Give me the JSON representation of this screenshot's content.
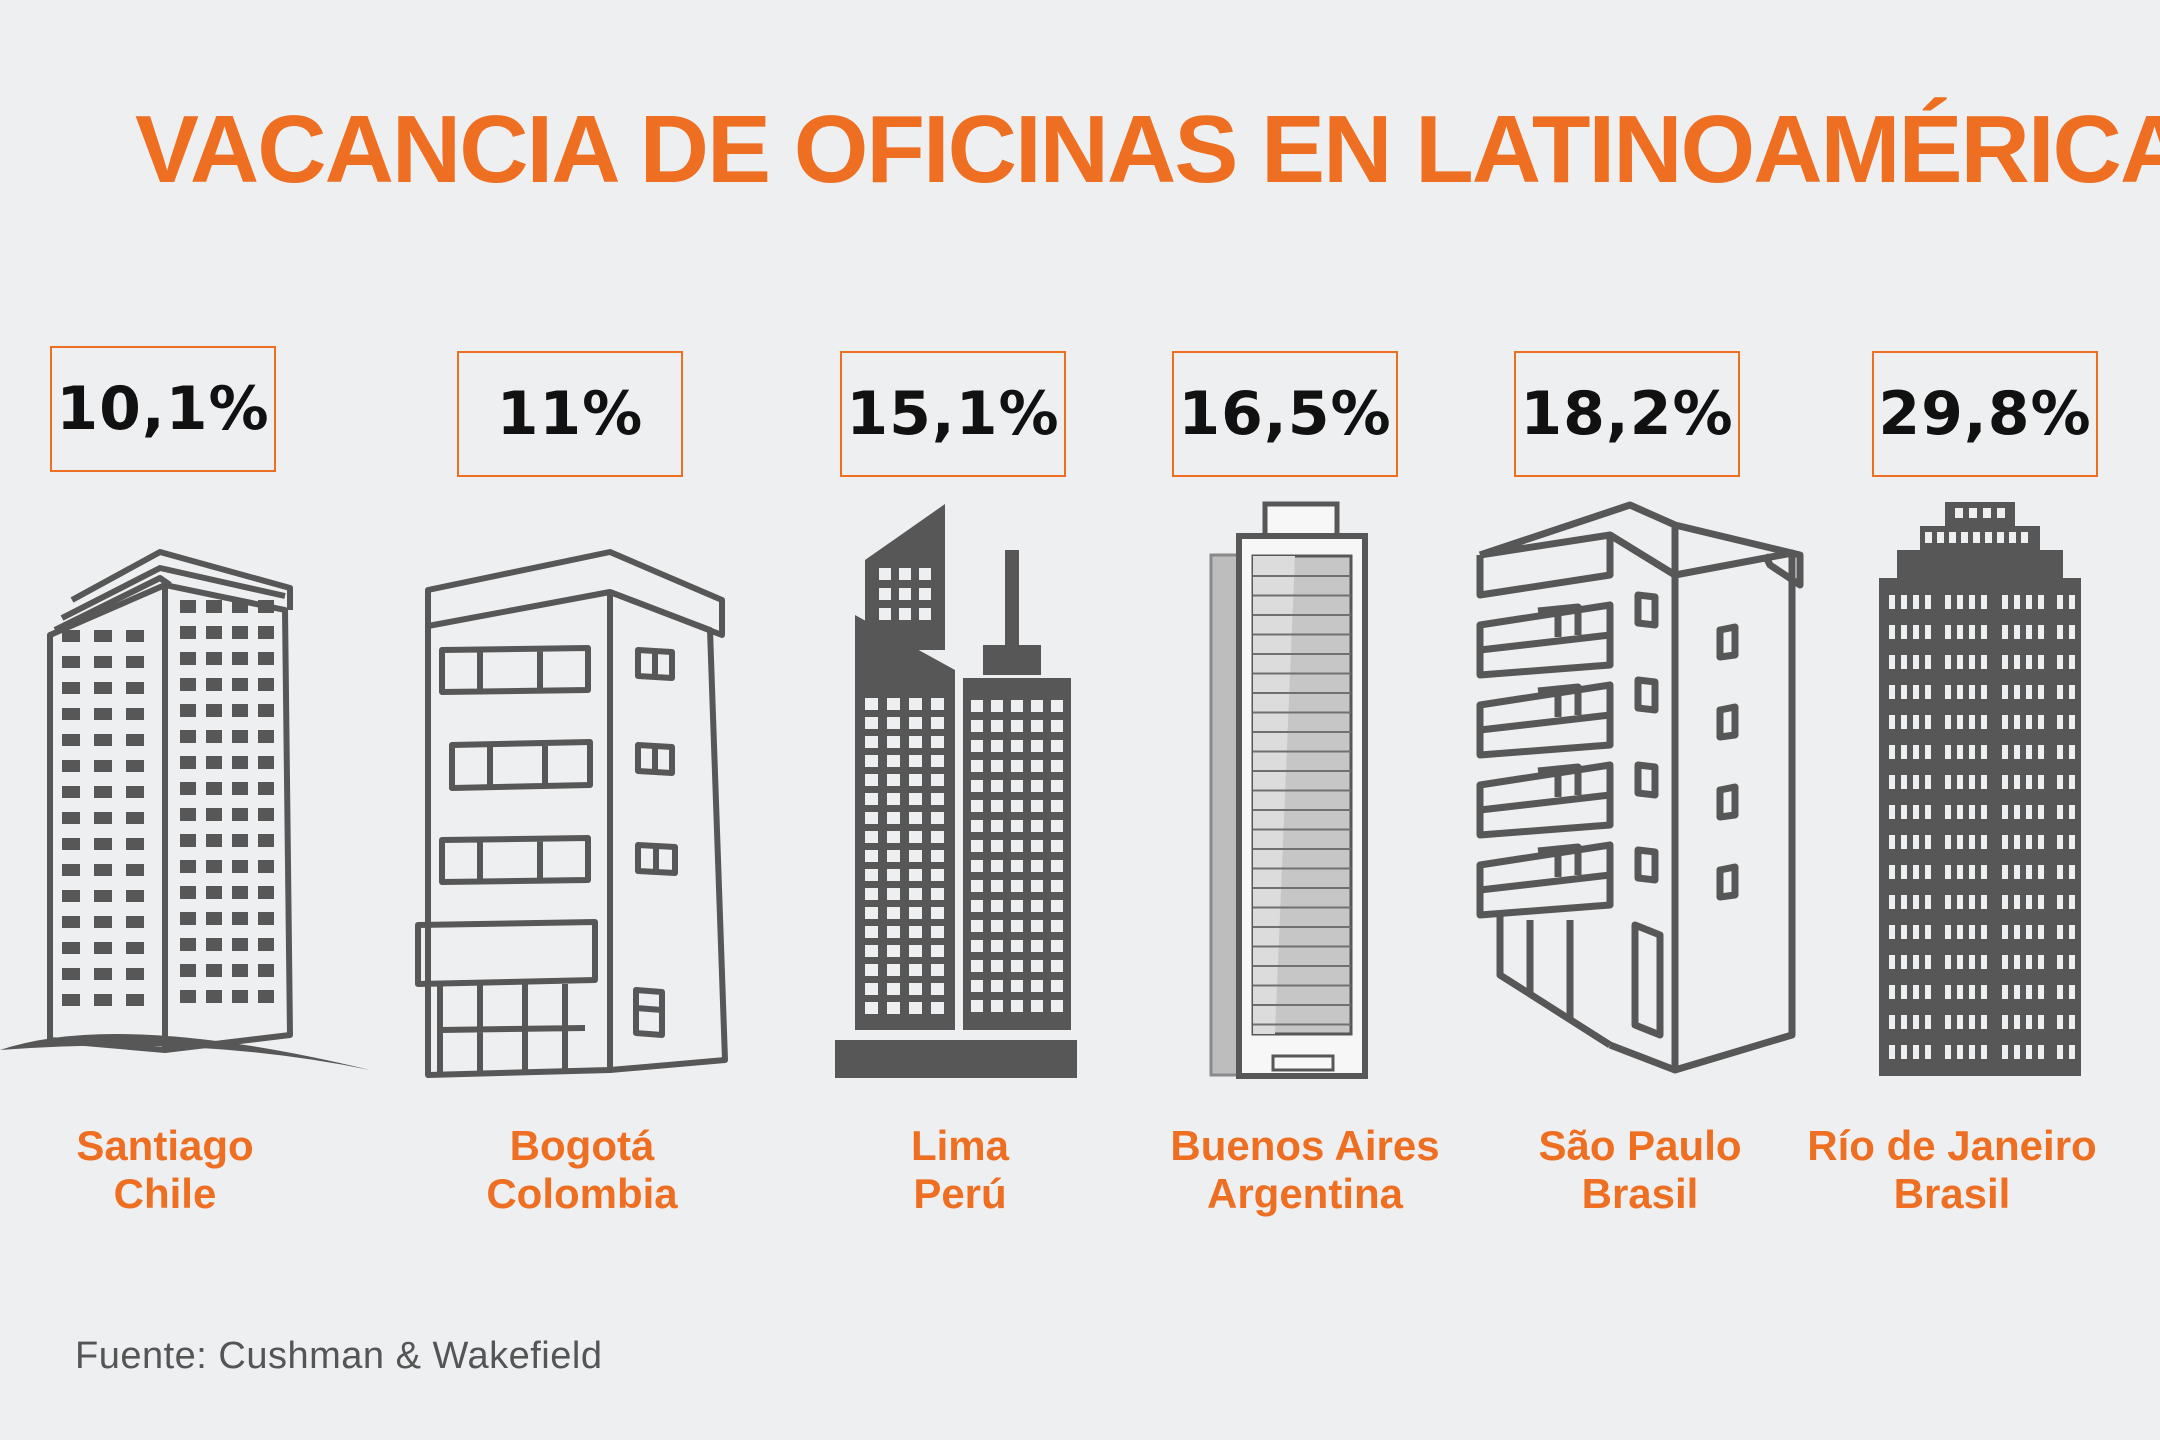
{
  "title": "VACANCIA DE OFICINAS EN LATINOAMÉRICA",
  "source": "Fuente: Cushman & Wakefield",
  "colors": {
    "accent": "#ee6f22",
    "building": "#575757",
    "background": "#edeff1"
  },
  "chart_data": {
    "type": "bar",
    "title": "VACANCIA DE OFICINAS EN LATINOAMÉRICA",
    "unit": "%",
    "categories": [
      "Santiago Chile",
      "Bogotá Colombia",
      "Lima Perú",
      "Buenos Aires Argentina",
      "São Paulo Brasil",
      "Río de Janeiro Brasil"
    ],
    "values": [
      10.1,
      11,
      15.1,
      16.5,
      18.2,
      29.8
    ],
    "items": [
      {
        "value_label": "10,1%",
        "city": "Santiago",
        "country": "Chile",
        "icon": "tower-building-icon"
      },
      {
        "value_label": "11%",
        "city": "Bogotá",
        "country": "Colombia",
        "icon": "office-block-icon"
      },
      {
        "value_label": "15,1%",
        "city": "Lima",
        "country": "Perú",
        "icon": "twin-towers-icon"
      },
      {
        "value_label": "16,5%",
        "city": "Buenos Aires",
        "country": "Argentina",
        "icon": "glass-tower-icon"
      },
      {
        "value_label": "18,2%",
        "city": "São Paulo",
        "country": "Brasil",
        "icon": "balcony-building-icon"
      },
      {
        "value_label": "29,8%",
        "city": "Río de Janeiro",
        "country": "Brasil",
        "icon": "stepped-tower-icon"
      }
    ]
  }
}
